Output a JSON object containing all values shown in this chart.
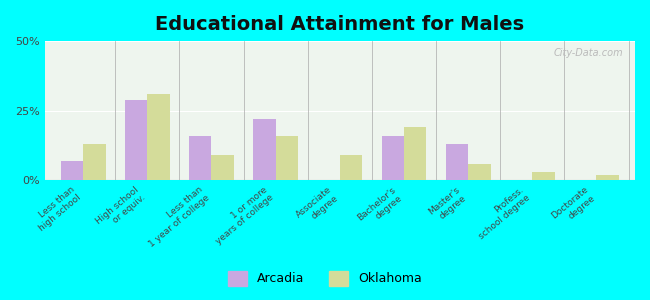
{
  "title": "Educational Attainment for Males",
  "categories": [
    "Less than\nhigh school",
    "High school\nor equiv.",
    "Less than\n1 year of college",
    "1 or more\nyears of college",
    "Associate\ndegree",
    "Bachelor's\ndegree",
    "Master's\ndegree",
    "Profess.\nschool degree",
    "Doctorate\ndegree"
  ],
  "arcadia": [
    7,
    29,
    16,
    22,
    0,
    16,
    13,
    0,
    0
  ],
  "oklahoma": [
    13,
    31,
    9,
    16,
    9,
    19,
    6,
    3,
    2
  ],
  "arcadia_color": "#c9a8e0",
  "oklahoma_color": "#d4dc9a",
  "bg_color": "#00ffff",
  "plot_bg_color": "#eef5ee",
  "ylim": [
    0,
    50
  ],
  "yticks": [
    0,
    25,
    50
  ],
  "ytick_labels": [
    "0%",
    "25%",
    "50%"
  ],
  "bar_width": 0.35,
  "title_fontsize": 14,
  "legend_labels": [
    "Arcadia",
    "Oklahoma"
  ]
}
